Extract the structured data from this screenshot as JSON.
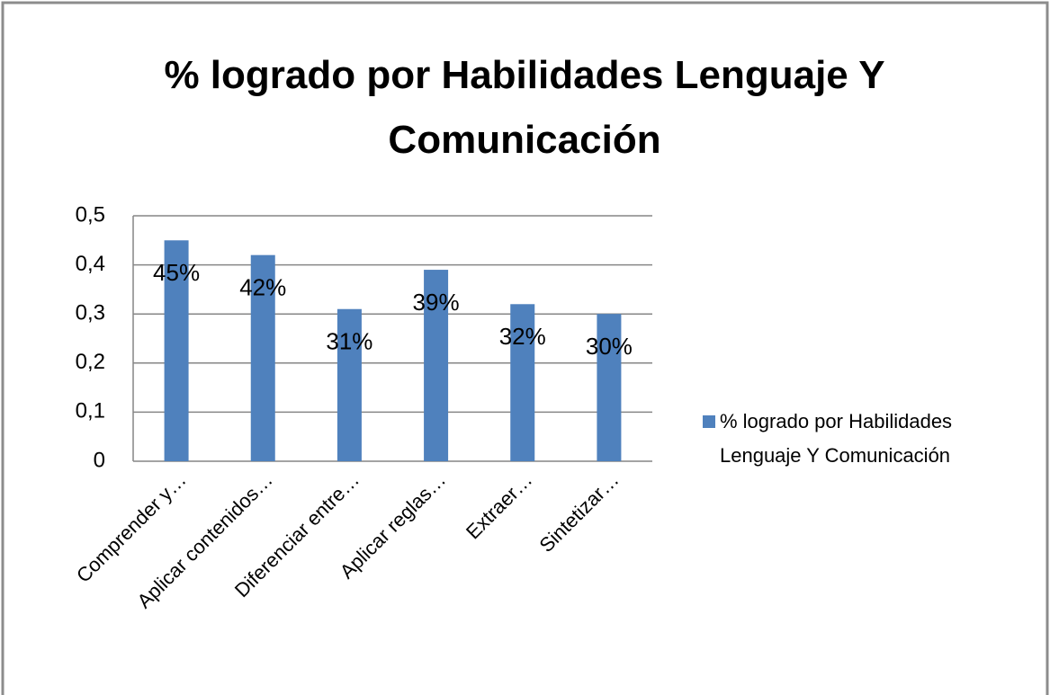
{
  "chart_data": {
    "type": "bar",
    "title": "% logrado por Habilidades Lenguaje Y Comunicación",
    "categories": [
      "Comprender y…",
      "Aplicar contenidos…",
      "Diferenciar entre…",
      "Aplicar reglas…",
      "Extraer…",
      "Sintetizar…"
    ],
    "series": [
      {
        "name": "% logrado por Habilidades Lenguaje Y Comunicación",
        "color": "#4f81bd",
        "values": [
          0.45,
          0.42,
          0.31,
          0.39,
          0.32,
          0.3
        ],
        "value_labels": [
          "45%",
          "42%",
          "31%",
          "39%",
          "32%",
          "30%"
        ]
      }
    ],
    "ylim": [
      0,
      0.5
    ],
    "yticks": [
      0,
      {
        "value": 0.1,
        "label": "0,1"
      },
      {
        "value": 0.2,
        "label": "0,2"
      },
      {
        "value": 0.3,
        "label": "0,3"
      },
      {
        "value": 0.4,
        "label": "0,4"
      },
      {
        "value": 0.5,
        "label": "0,5"
      }
    ],
    "grid": true,
    "legend": "right"
  }
}
